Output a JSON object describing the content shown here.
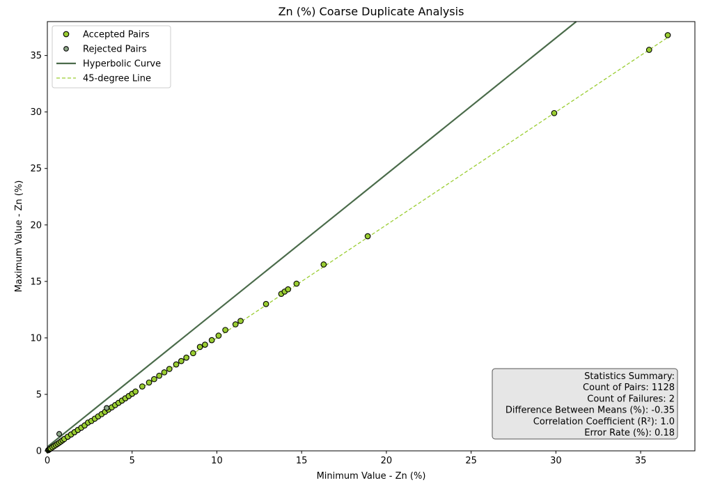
{
  "chart_data": {
    "type": "scatter",
    "title": "Zn (%) Coarse Duplicate Analysis",
    "xlabel": "Minimum Value - Zn (%)",
    "ylabel": "Maximum Value - Zn (%)",
    "xlim": [
      0,
      38.2
    ],
    "ylim": [
      0,
      38
    ],
    "xticks": [
      "0",
      "5",
      "10",
      "15",
      "20",
      "25",
      "30",
      "35"
    ],
    "yticks": [
      "0",
      "5",
      "10",
      "15",
      "20",
      "25",
      "30",
      "35"
    ],
    "grid": false,
    "legend_position": "top-left",
    "colors": {
      "accepted": "#9acd32",
      "rejected": "#8fa88a",
      "hyperbolic": "#4a6b4a",
      "diagonal": "#9acd32",
      "stats_box": "#e6e6e6"
    },
    "legend": [
      {
        "label": "Accepted Pairs",
        "kind": "accepted"
      },
      {
        "label": "Rejected Pairs",
        "kind": "rejected"
      },
      {
        "label": "Hyperbolic Curve",
        "kind": "hyperbolic"
      },
      {
        "label": "45-degree Line",
        "kind": "diagonal"
      }
    ],
    "series": [
      {
        "name": "Accepted Pairs",
        "points": [
          [
            0.05,
            0.06
          ],
          [
            0.1,
            0.12
          ],
          [
            0.15,
            0.16
          ],
          [
            0.2,
            0.21
          ],
          [
            0.3,
            0.32
          ],
          [
            0.4,
            0.42
          ],
          [
            0.5,
            0.52
          ],
          [
            0.6,
            0.62
          ],
          [
            0.7,
            0.72
          ],
          [
            0.8,
            0.83
          ],
          [
            0.9,
            0.94
          ],
          [
            1.0,
            1.05
          ],
          [
            1.2,
            1.25
          ],
          [
            1.4,
            1.45
          ],
          [
            1.6,
            1.65
          ],
          [
            1.8,
            1.85
          ],
          [
            2.0,
            2.05
          ],
          [
            2.2,
            2.25
          ],
          [
            2.4,
            2.5
          ],
          [
            2.6,
            2.65
          ],
          [
            2.8,
            2.85
          ],
          [
            3.0,
            3.05
          ],
          [
            3.2,
            3.25
          ],
          [
            3.4,
            3.45
          ],
          [
            3.6,
            3.65
          ],
          [
            3.8,
            3.85
          ],
          [
            4.0,
            4.05
          ],
          [
            4.2,
            4.25
          ],
          [
            4.4,
            4.45
          ],
          [
            4.6,
            4.65
          ],
          [
            4.8,
            4.85
          ],
          [
            5.0,
            5.05
          ],
          [
            5.2,
            5.25
          ],
          [
            5.6,
            5.7
          ],
          [
            6.0,
            6.05
          ],
          [
            6.3,
            6.35
          ],
          [
            6.6,
            6.65
          ],
          [
            6.9,
            6.95
          ],
          [
            7.2,
            7.25
          ],
          [
            7.6,
            7.65
          ],
          [
            7.9,
            7.95
          ],
          [
            8.2,
            8.25
          ],
          [
            8.6,
            8.65
          ],
          [
            9.0,
            9.2
          ],
          [
            9.3,
            9.4
          ],
          [
            9.7,
            9.8
          ],
          [
            10.1,
            10.2
          ],
          [
            10.5,
            10.7
          ],
          [
            11.1,
            11.2
          ],
          [
            11.4,
            11.5
          ],
          [
            12.9,
            13.0
          ],
          [
            13.8,
            13.9
          ],
          [
            14.0,
            14.1
          ],
          [
            14.2,
            14.3
          ],
          [
            14.7,
            14.8
          ],
          [
            16.3,
            16.5
          ],
          [
            18.9,
            19.0
          ],
          [
            29.9,
            29.9
          ],
          [
            35.5,
            35.5
          ],
          [
            36.6,
            36.8
          ]
        ]
      },
      {
        "name": "Rejected Pairs",
        "points": [
          [
            0.7,
            1.5
          ],
          [
            3.5,
            3.8
          ]
        ]
      }
    ],
    "lines": [
      {
        "name": "Hyperbolic Curve",
        "x": [
          0,
          31.2
        ],
        "y": [
          0.35,
          38
        ]
      },
      {
        "name": "45-degree Line",
        "x": [
          0,
          36.7
        ],
        "y": [
          0,
          36.7
        ]
      }
    ],
    "stats": {
      "heading": "Statistics Summary:",
      "lines": [
        "Count of Pairs: 1128",
        "Count of Failures: 2",
        "Difference Between Means (%): -0.35",
        "Correlation Coefficient (R²): 1.0",
        "Error Rate (%): 0.18"
      ]
    }
  }
}
